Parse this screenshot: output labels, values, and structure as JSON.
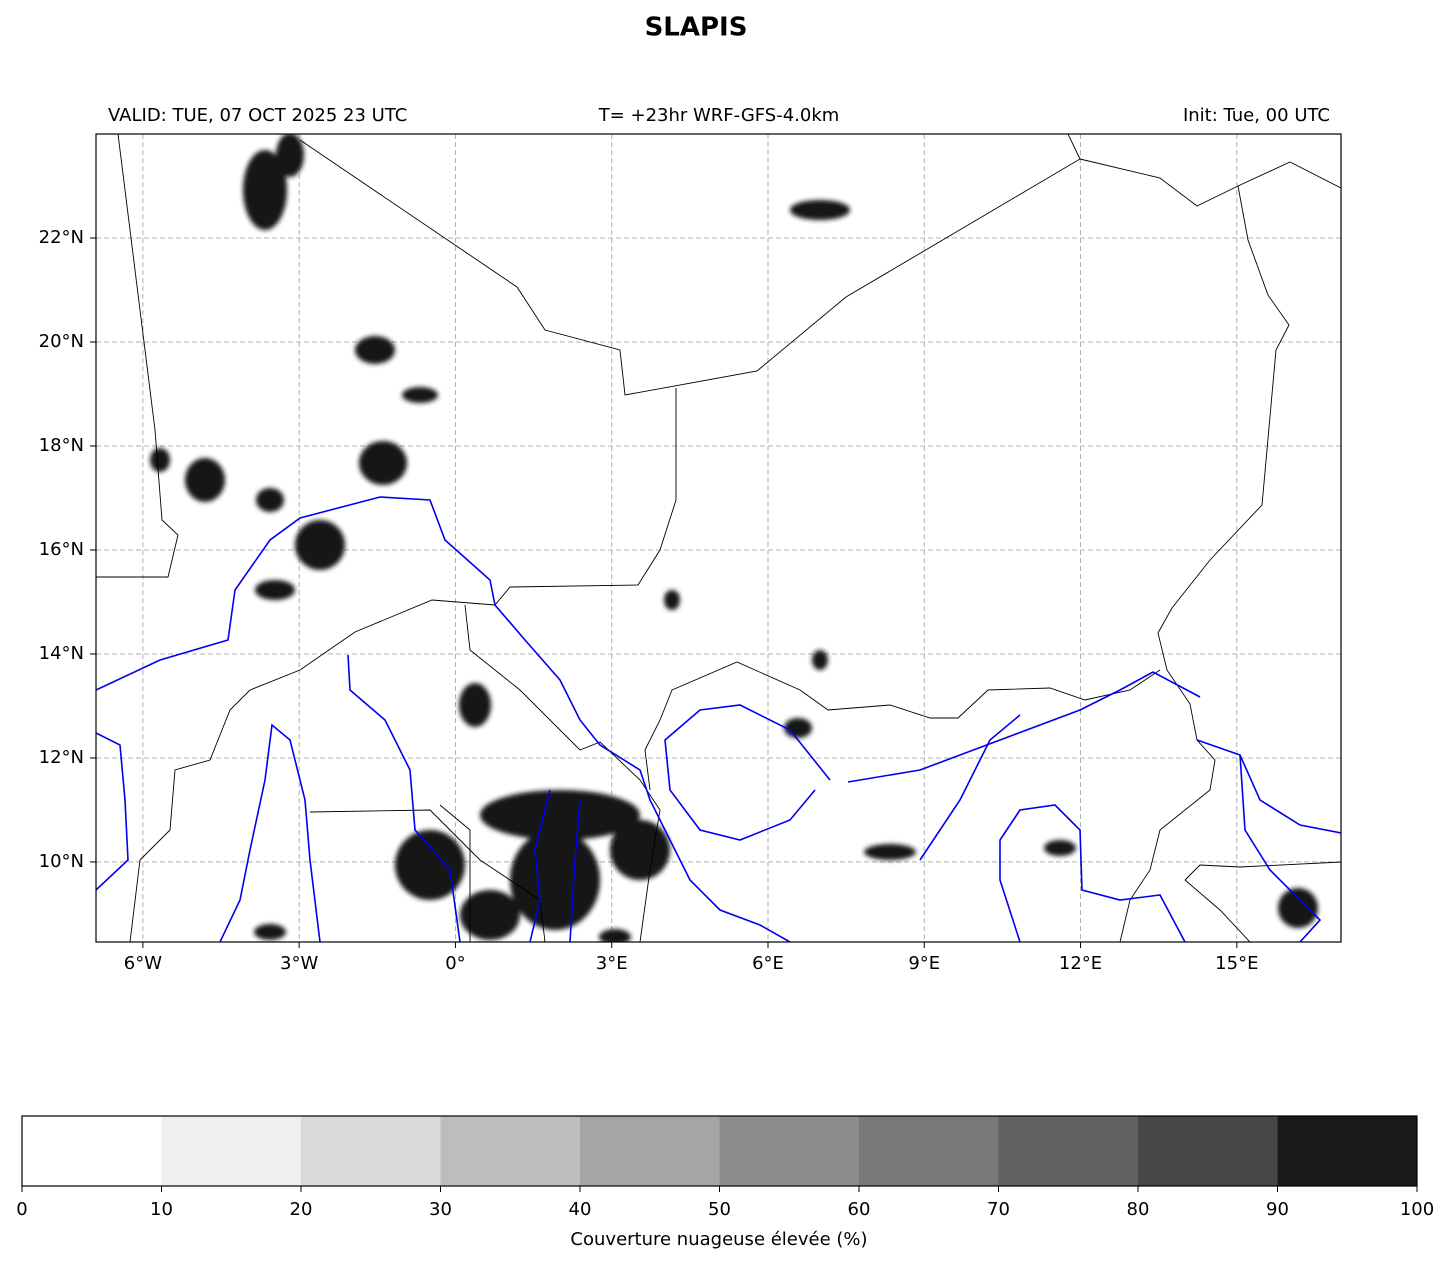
{
  "title": "SLAPIS",
  "subtitle_left": "VALID: TUE, 07 OCT 2025 23 UTC",
  "subtitle_center": "T= +23hr WRF-GFS-4.0km",
  "subtitle_right": "Init: Tue, 00 UTC",
  "map": {
    "xlim": [
      -6.9,
      17
    ],
    "ylim": [
      8.46,
      24
    ],
    "xticks": [
      {
        "value": -6,
        "label": "6°W"
      },
      {
        "value": -3,
        "label": "3°W"
      },
      {
        "value": 0,
        "label": "0°"
      },
      {
        "value": 3,
        "label": "3°E"
      },
      {
        "value": 6,
        "label": "6°E"
      },
      {
        "value": 9,
        "label": "9°E"
      },
      {
        "value": 12,
        "label": "12°E"
      },
      {
        "value": 15,
        "label": "15°E"
      }
    ],
    "yticks": [
      {
        "value": 10,
        "label": "10°N"
      },
      {
        "value": 12,
        "label": "12°N"
      },
      {
        "value": 14,
        "label": "14°N"
      },
      {
        "value": 16,
        "label": "16°N"
      },
      {
        "value": 18,
        "label": "18°N"
      },
      {
        "value": 20,
        "label": "20°N"
      },
      {
        "value": 22,
        "label": "22°N"
      }
    ],
    "grid": true
  },
  "colorbar": {
    "ticks": [
      0,
      10,
      20,
      30,
      40,
      50,
      60,
      70,
      80,
      90,
      100
    ],
    "colors": [
      "#ffffff",
      "#efefef",
      "#d9d9d9",
      "#bdbdbd",
      "#a5a5a5",
      "#8c8c8c",
      "#797979",
      "#616161",
      "#474747",
      "#191919"
    ],
    "label": "Couverture nuageuse élevée (%)"
  }
}
